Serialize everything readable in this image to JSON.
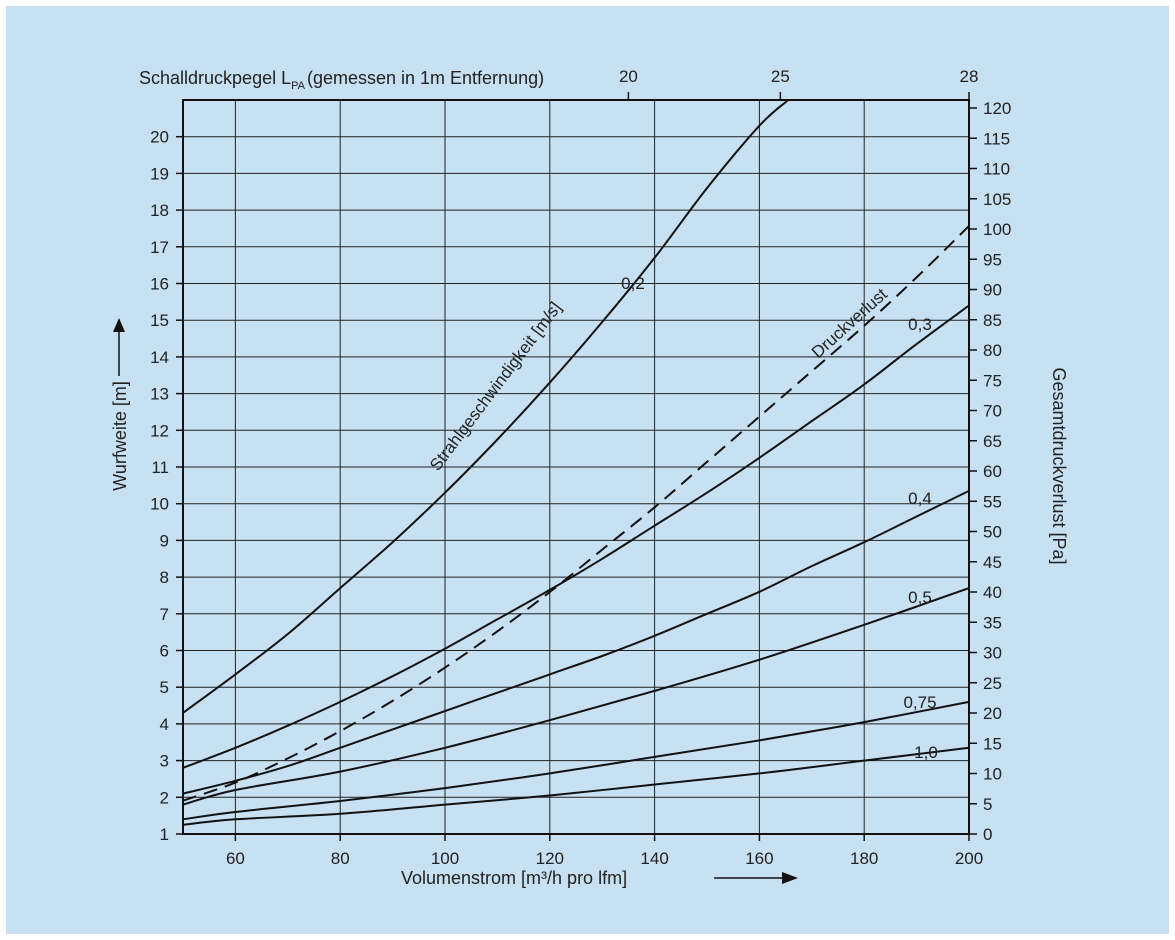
{
  "chart_data": {
    "type": "line",
    "x_axis": {
      "label": "Volumenstrom [m³/h pro lfm]",
      "range": [
        50,
        200
      ],
      "ticks": [
        60,
        80,
        100,
        120,
        140,
        160,
        180,
        200
      ]
    },
    "y_axis_left": {
      "label": "Wurfweite [m]",
      "range": [
        1,
        21
      ],
      "ticks": [
        1,
        2,
        3,
        4,
        5,
        6,
        7,
        8,
        9,
        10,
        11,
        12,
        13,
        14,
        15,
        16,
        17,
        18,
        19,
        20
      ]
    },
    "y_axis_right": {
      "label": "Gesamtdruckverlust [Pa]",
      "range": [
        0,
        120
      ],
      "ticks": [
        0,
        5,
        10,
        15,
        20,
        25,
        30,
        35,
        40,
        45,
        50,
        55,
        60,
        65,
        70,
        75,
        80,
        85,
        90,
        95,
        100,
        105,
        110,
        115,
        120
      ]
    },
    "top_axis": {
      "label_prefix": "Schalldruckpegel L",
      "label_sub": "PA",
      "label_suffix": "(gemessen in 1m Entfernung)",
      "ticks": [
        {
          "label": "20",
          "x": 135
        },
        {
          "label": "25",
          "x": 164
        },
        {
          "label": "28",
          "x": 200
        }
      ]
    },
    "series_group_label": "Strahlgeschwindigkeit [m/s]",
    "series": [
      {
        "name": "0,2",
        "x": [
          50,
          60,
          70,
          80,
          90,
          100,
          110,
          120,
          130,
          140,
          150,
          160,
          165.5
        ],
        "y": [
          4.3,
          5.35,
          6.45,
          7.7,
          8.95,
          10.3,
          11.75,
          13.3,
          14.95,
          16.7,
          18.6,
          20.3,
          21
        ]
      },
      {
        "name": "0,3",
        "x": [
          50,
          60,
          70,
          80,
          90,
          100,
          110,
          120,
          130,
          140,
          150,
          160,
          170,
          180,
          190,
          200
        ],
        "y": [
          2.8,
          3.35,
          3.95,
          4.6,
          5.3,
          6.05,
          6.85,
          7.65,
          8.5,
          9.4,
          10.3,
          11.25,
          12.25,
          13.25,
          14.35,
          15.4
        ]
      },
      {
        "name": "0,4",
        "x": [
          50,
          60,
          70,
          80,
          90,
          100,
          110,
          120,
          130,
          140,
          150,
          160,
          170,
          180,
          190,
          200
        ],
        "y": [
          2.1,
          2.45,
          2.85,
          3.35,
          3.85,
          4.35,
          4.85,
          5.35,
          5.85,
          6.4,
          7.0,
          7.6,
          8.3,
          8.95,
          9.65,
          10.35
        ]
      },
      {
        "name": "0,5",
        "x": [
          50,
          60,
          80,
          100,
          120,
          140,
          160,
          180,
          200
        ],
        "y": [
          1.8,
          2.2,
          2.7,
          3.35,
          4.1,
          4.9,
          5.75,
          6.7,
          7.7
        ]
      },
      {
        "name": "0,75",
        "x": [
          50,
          60,
          80,
          100,
          120,
          140,
          160,
          180,
          200
        ],
        "y": [
          1.4,
          1.6,
          1.9,
          2.25,
          2.65,
          3.1,
          3.55,
          4.05,
          4.6
        ]
      },
      {
        "name": "1,0",
        "x": [
          50,
          60,
          80,
          100,
          120,
          140,
          160,
          180,
          200
        ],
        "y": [
          1.25,
          1.4,
          1.55,
          1.8,
          2.05,
          2.35,
          2.65,
          3.0,
          3.35
        ]
      }
    ],
    "pressure_series": {
      "name": "Druckverlust",
      "style": "dashed",
      "x": [
        50,
        60,
        70,
        80,
        90,
        100,
        110,
        120,
        130,
        140,
        150,
        160,
        170,
        180,
        190,
        200
      ],
      "y_pa": [
        5.5,
        8.5,
        12.5,
        17,
        22,
        27.5,
        33.5,
        40,
        47,
        54,
        61.5,
        69,
        76.5,
        84,
        92,
        100.5
      ]
    },
    "grid": true
  },
  "colors": {
    "background": "#c7e0f2",
    "line": "#111111"
  }
}
